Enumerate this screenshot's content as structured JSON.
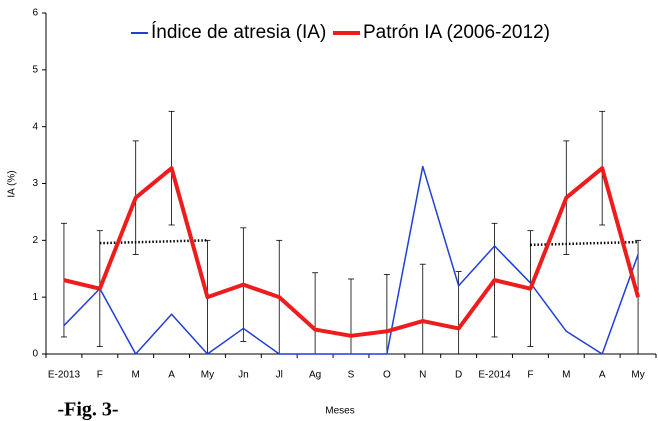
{
  "chart_data": {
    "type": "line",
    "categories": [
      "E-2013",
      "F",
      "M",
      "A",
      "My",
      "Jn",
      "Jl",
      "Ag",
      "S",
      "O",
      "N",
      "D",
      "E-2014",
      "F",
      "M",
      "A",
      "My"
    ],
    "series": [
      {
        "name": "Índice de atresia (IA)",
        "color": "#1f3fd8",
        "values": [
          0.5,
          1.15,
          0,
          0.7,
          0,
          0.45,
          0,
          0,
          0,
          0,
          3.3,
          1.2,
          1.9,
          1.25,
          0.4,
          0,
          1.75
        ]
      },
      {
        "name": "Patrón IA (2006-2012)",
        "color": "#ee1c1c",
        "values": [
          1.3,
          1.15,
          2.75,
          3.27,
          1.0,
          1.22,
          1.0,
          0.43,
          0.32,
          0.4,
          0.58,
          0.45,
          1.3,
          1.15,
          2.75,
          3.27,
          1.0
        ],
        "errors": [
          1.0,
          1.02,
          1.0,
          1.0,
          1.0,
          1.0,
          1.0,
          1.0,
          1.0,
          1.0,
          1.0,
          1.0,
          1.0,
          1.02,
          1.0,
          1.0,
          1.0
        ]
      }
    ],
    "trend_lines": [
      {
        "from": 1,
        "to": 4,
        "values": [
          1.95,
          2.0
        ]
      },
      {
        "from": 13,
        "to": 16,
        "values": [
          1.92,
          1.97
        ]
      }
    ],
    "ylabel": "IA (%)",
    "xlabel": "Meses",
    "caption": "-Fig. 3-",
    "ylim": [
      0,
      6
    ],
    "yticks": [
      0,
      1,
      2,
      3,
      4,
      5,
      6
    ]
  }
}
